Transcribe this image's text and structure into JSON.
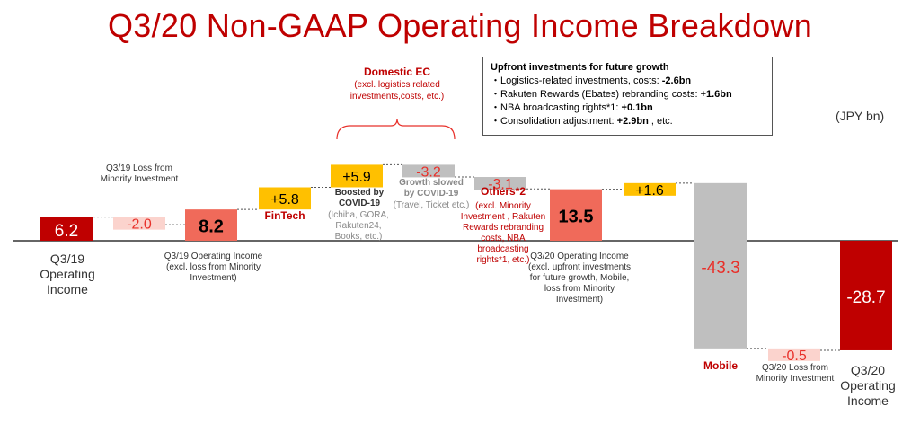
{
  "title": "Q3/20 Non-GAAP Operating Income Breakdown",
  "unit": "(JPY bn)",
  "callout": {
    "heading": "Upfront investments for future growth",
    "lines": [
      {
        "text": "・Logistics-related investments, costs: ",
        "value": "-2.6bn",
        "suffix": ""
      },
      {
        "text": "・Rakuten Rewards (Ebates) rebranding costs: ",
        "value": "+1.6bn",
        "suffix": ""
      },
      {
        "text": "・NBA broadcasting rights*1: ",
        "value": "+0.1bn",
        "suffix": ""
      },
      {
        "text": "・Consolidation adjustment: ",
        "value": "+2.9bn",
        "suffix": " , etc."
      }
    ]
  },
  "bracket": {
    "label": "Domestic EC",
    "sub": "(excl. logistics related investments,costs, etc.)"
  },
  "colors": {
    "dark_red": "#bf0000",
    "coral": "#f06a5a",
    "salmon_light": "#fbd3cd",
    "yellow": "#ffc000",
    "grey": "#bfbfbf",
    "red_text": "#e8302a",
    "title": "#bf0000"
  },
  "labels": {
    "q319": "Q3/19 Operating Income",
    "loss_minority": "Q3/19 Loss from Minority Investment",
    "q319_excl": "Q3/19 Operating Income (excl. loss from Minority Investment)",
    "fintech": "FinTech",
    "boosted": "Boosted by COVID-19",
    "boosted_sub": "(Ichiba, GORA, Rakuten24, Books, etc.)",
    "slowed": "Growth slowed by COVID-19",
    "slowed_sub": "(Travel, Ticket etc.)",
    "others": "Others*2",
    "others_sub": "(excl. Minority Investment , Rakuten Rewards rebranding costs, NBA broadcasting rights*1, etc.)",
    "q320_excl": "Q3/20 Operating Income (excl. upfront investments for future growth, Mobile, loss from Minority Investment)",
    "mobile": "Mobile",
    "q320_loss": "Q3/20 Loss from Minority Investment",
    "q320": "Q3/20 Operating Income"
  },
  "chart_data": {
    "type": "bar",
    "subtype": "waterfall",
    "categories": [
      "Q3/19 Operating Income",
      "Q3/19 Loss from Minority Investment",
      "Q3/19 Operating Income (excl. loss from Minority Investment)",
      "FinTech",
      "Boosted by COVID-19",
      "Growth slowed by COVID-19",
      "Others",
      "Q3/20 Operating Income (excl. upfront investments for future growth, Mobile, loss from Minority Investment)",
      "Upfront investments for future growth",
      "Mobile",
      "Q3/20 Loss from Minority Investment",
      "Q3/20 Operating Income"
    ],
    "values": [
      6.2,
      -2.0,
      8.2,
      5.8,
      5.9,
      -3.2,
      -3.1,
      13.5,
      1.6,
      -43.3,
      -0.5,
      -28.7
    ],
    "value_labels": [
      "6.2",
      "-2.0",
      "8.2",
      "+5.8",
      "+5.9",
      "-3.2",
      "-3.1",
      "13.5",
      "+1.6",
      "-43.3",
      "-0.5",
      "-28.7"
    ],
    "kinds": [
      "total",
      "delta",
      "total",
      "delta",
      "delta",
      "delta",
      "delta",
      "total",
      "delta",
      "delta",
      "delta",
      "total"
    ],
    "bar_colors": [
      "#bf0000",
      "#fbd3cd",
      "#f06a5a",
      "#ffc000",
      "#ffc000",
      "#bfbfbf",
      "#bfbfbf",
      "#f06a5a",
      "#ffc000",
      "#bfbfbf",
      "#fbd3cd",
      "#bf0000"
    ],
    "label_colors": [
      "#ffffff",
      "#e8302a",
      "#000000",
      "#000000",
      "#000000",
      "#e8302a",
      "#e8302a",
      "#000000",
      "#000000",
      "#e8302a",
      "#e8302a",
      "#ffffff"
    ]
  }
}
